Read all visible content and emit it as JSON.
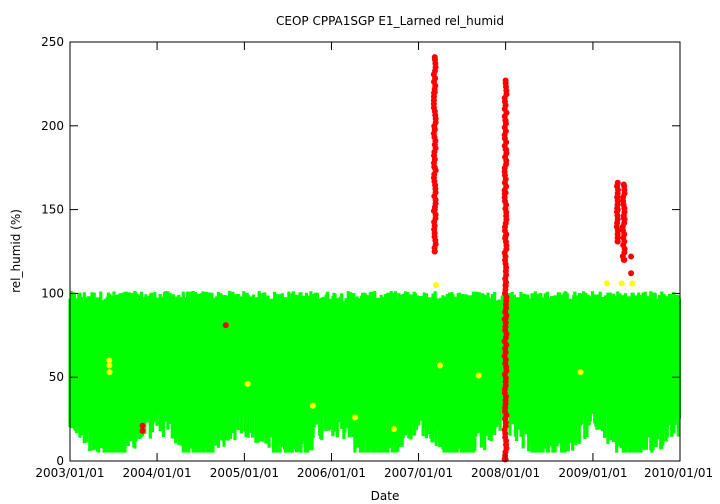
{
  "chart_data": {
    "type": "scatter",
    "title": "CEOP CPPA1SGP E1_Larned  rel_humid",
    "xlabel": "Date",
    "ylabel": "rel_humid (%)",
    "xlim": [
      "2003-01-01",
      "2010-01-01"
    ],
    "ylim": [
      0,
      250
    ],
    "x_ticks": [
      "2003/01/01",
      "2004/01/01",
      "2005/01/01",
      "2006/01/01",
      "2007/01/01",
      "2008/01/01",
      "2009/01/01",
      "2010/01/01"
    ],
    "y_ticks": [
      0,
      50,
      100,
      150,
      200,
      250
    ],
    "grid": false,
    "legend": "none",
    "colors": {
      "normal": "#00ff00",
      "flagged_yellow": "#ffff00",
      "flagged_red": "#ff0000",
      "connector": "#ff9999"
    },
    "series": [
      {
        "color": "green",
        "description_range": "bulk hourly values",
        "x_range": [
          "2003-01-01",
          "2009-12-31"
        ],
        "y_typical": [
          10,
          101
        ]
      },
      {
        "color": "yellow",
        "points": [
          {
            "x": "2003-06-15",
            "y": 60
          },
          {
            "x": "2003-06-15",
            "y": 57
          },
          {
            "x": "2003-06-16",
            "y": 53
          },
          {
            "x": "2005-01-15",
            "y": 46
          },
          {
            "x": "2005-10-15",
            "y": 33
          },
          {
            "x": "2006-04-10",
            "y": 26
          },
          {
            "x": "2006-09-20",
            "y": 19
          },
          {
            "x": "2007-03-15",
            "y": 105
          },
          {
            "x": "2007-04-01",
            "y": 57
          },
          {
            "x": "2007-09-10",
            "y": 51
          },
          {
            "x": "2008-11-10",
            "y": 53
          },
          {
            "x": "2009-03-01",
            "y": 106
          },
          {
            "x": "2009-05-01",
            "y": 106
          },
          {
            "x": "2009-06-15",
            "y": 106
          }
        ]
      },
      {
        "color": "red",
        "points": [
          {
            "x": "2003-11-01",
            "y": 21
          },
          {
            "x": "2003-11-01",
            "y": 18
          },
          {
            "x": "2004-10-15",
            "y": 81
          },
          {
            "x": "2007-03-10",
            "y": 241
          },
          {
            "x": "2007-03-10",
            "y": 220
          },
          {
            "x": "2007-03-10",
            "y": 198
          },
          {
            "x": "2007-03-10",
            "y": 175
          },
          {
            "x": "2007-03-10",
            "y": 150
          },
          {
            "x": "2007-03-10",
            "y": 125
          },
          {
            "x": "2008-01-01",
            "y": 227
          },
          {
            "x": "2008-01-01",
            "y": 203
          },
          {
            "x": "2008-01-01",
            "y": 186
          },
          {
            "x": "2008-01-01",
            "y": 160
          },
          {
            "x": "2008-01-01",
            "y": 134
          },
          {
            "x": "2008-01-01",
            "y": 105
          },
          {
            "x": "2008-01-01",
            "y": 85
          },
          {
            "x": "2008-01-01",
            "y": 1
          },
          {
            "x": "2009-04-15",
            "y": 166
          },
          {
            "x": "2009-04-15",
            "y": 150
          },
          {
            "x": "2009-04-15",
            "y": 131
          },
          {
            "x": "2009-05-10",
            "y": 165
          },
          {
            "x": "2009-05-10",
            "y": 145
          },
          {
            "x": "2009-05-10",
            "y": 120
          },
          {
            "x": "2009-06-10",
            "y": 122
          },
          {
            "x": "2009-06-10",
            "y": 112
          }
        ]
      }
    ]
  }
}
